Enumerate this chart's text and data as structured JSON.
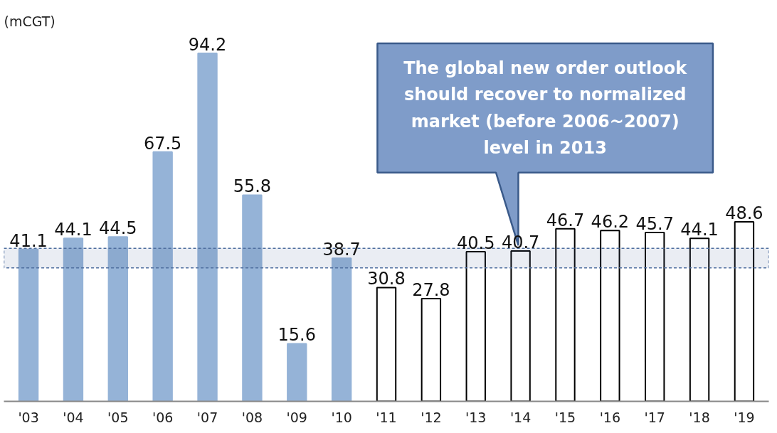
{
  "chart_data": {
    "type": "bar",
    "ylabel": "(mCGT)",
    "categories": [
      "'03",
      "'04",
      "'05",
      "'06",
      "'07",
      "'08",
      "'09",
      "'10",
      "'11",
      "'12",
      "'13",
      "'14",
      "'15",
      "'16",
      "'17",
      "'18",
      "'19"
    ],
    "values": [
      41.1,
      44.1,
      44.5,
      67.5,
      94.2,
      55.8,
      15.6,
      38.7,
      30.8,
      27.8,
      40.5,
      40.7,
      46.7,
      46.2,
      45.7,
      44.1,
      48.6
    ],
    "colors": [
      "#95b3d7",
      "#95b3d7",
      "#95b3d7",
      "#95b3d7",
      "#95b3d7",
      "#95b3d7",
      "#95b3d7",
      "#95b3d7",
      "#ffffff",
      "#ffffff",
      "#ffffff",
      "#ffffff",
      "#ffffff",
      "#ffffff",
      "#ffffff",
      "#ffffff",
      "#ffffff"
    ],
    "data_labels": true,
    "grid": false,
    "bands": [
      {
        "axis": "y",
        "from": 36.1,
        "to": 41.4,
        "color": "#4f6f9f"
      }
    ],
    "annotations": [
      "The global new order outlook\nshould recover to normalized\nmarket (before 2006~2007)\nlevel in 2013"
    ]
  }
}
